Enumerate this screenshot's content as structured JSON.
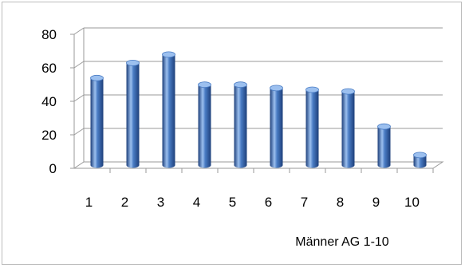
{
  "chart_data": {
    "type": "bar",
    "style": "3d-cylinder",
    "categories": [
      "1",
      "2",
      "3",
      "4",
      "5",
      "6",
      "7",
      "8",
      "9",
      "10"
    ],
    "series": [
      {
        "name": "Männer AG 1-10",
        "values": [
          52,
          61,
          66,
          48,
          48,
          46,
          45,
          44,
          23,
          6
        ]
      }
    ],
    "y_ticks": [
      "0",
      "20",
      "40",
      "60",
      "80"
    ],
    "ylim": [
      0,
      80
    ],
    "grid": true,
    "legend": "bottom-right",
    "colors": {
      "bar": "#4a7cc4",
      "bar_dark": "#1d3f7a",
      "bar_light": "#9cc0ef",
      "grid": "#9a9a9a"
    }
  }
}
